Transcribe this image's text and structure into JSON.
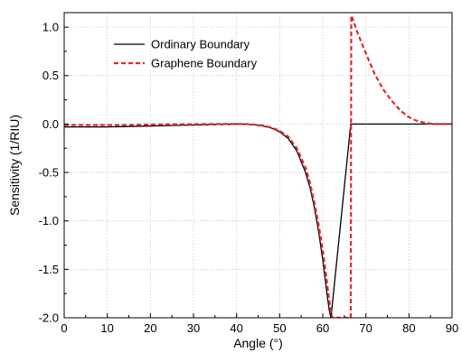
{
  "chart_data": {
    "type": "line",
    "title": "",
    "xlabel": "Angle (°)",
    "ylabel": "Sensitivity (1/RIU)",
    "xlim": [
      0,
      90
    ],
    "ylim": [
      -2.0,
      1.15
    ],
    "x_ticks": [
      0,
      10,
      20,
      30,
      40,
      50,
      60,
      70,
      80,
      90
    ],
    "x_tick_labels": [
      "0",
      "10",
      "20",
      "30",
      "40",
      "50",
      "60",
      "70",
      "80",
      "90"
    ],
    "y_ticks": [
      -2.0,
      -1.5,
      -1.0,
      -0.5,
      0.0,
      0.5,
      1.0
    ],
    "y_tick_labels": [
      "-2.0",
      "-1.5",
      "-1.0",
      "-0.5",
      "0.0",
      "0.5",
      "1.0"
    ],
    "grid": true,
    "legend_position": "top-left",
    "series": [
      {
        "name": "Ordinary Boundary",
        "color": "#000000",
        "style": "solid",
        "x": [
          0,
          5,
          10,
          15,
          20,
          25,
          30,
          35,
          40,
          42,
          44,
          46,
          48,
          50,
          52,
          54,
          56,
          57,
          58,
          59,
          60,
          60.5,
          61,
          61.5,
          61.9,
          66.5,
          67,
          70,
          75,
          80,
          85,
          90
        ],
        "y": [
          -0.03,
          -0.03,
          -0.03,
          -0.025,
          -0.02,
          -0.015,
          -0.01,
          -0.005,
          0.0,
          -0.002,
          -0.008,
          -0.02,
          -0.04,
          -0.08,
          -0.15,
          -0.28,
          -0.5,
          -0.65,
          -0.85,
          -1.1,
          -1.4,
          -1.58,
          -1.76,
          -1.92,
          -2.0,
          0.0,
          0.0,
          0.0,
          0.0,
          0.0,
          0.0,
          0.0
        ]
      },
      {
        "name": "Graphene Boundary",
        "color": "#e8262a",
        "style": "dashed",
        "x": [
          0,
          5,
          10,
          15,
          20,
          25,
          30,
          35,
          40,
          42,
          44,
          46,
          48,
          50,
          52,
          54,
          56,
          57,
          58,
          59,
          60,
          60.5,
          61,
          61.5,
          62,
          62.2,
          66.5,
          66.6,
          67,
          68,
          69,
          70,
          72,
          74,
          76,
          78,
          80,
          82,
          84,
          86,
          88,
          90
        ],
        "y": [
          -0.01,
          -0.01,
          -0.01,
          -0.01,
          -0.005,
          -0.003,
          -0.002,
          0.0,
          0.0,
          0.0,
          -0.005,
          -0.015,
          -0.035,
          -0.07,
          -0.13,
          -0.25,
          -0.45,
          -0.6,
          -0.8,
          -1.03,
          -1.3,
          -1.47,
          -1.64,
          -1.82,
          -1.96,
          -2.0,
          -2.0,
          1.12,
          1.08,
          0.95,
          0.84,
          0.73,
          0.52,
          0.36,
          0.24,
          0.14,
          0.07,
          0.03,
          0.01,
          0.0,
          0.0,
          0.0
        ]
      }
    ]
  }
}
